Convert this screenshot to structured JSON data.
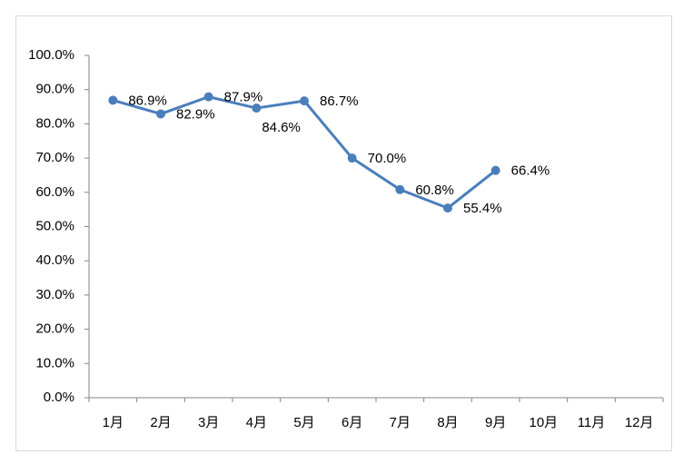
{
  "chart_data": {
    "type": "line",
    "categories": [
      "1月",
      "2月",
      "3月",
      "4月",
      "5月",
      "6月",
      "7月",
      "8月",
      "9月",
      "10月",
      "11月",
      "12月"
    ],
    "values": [
      86.9,
      82.9,
      87.9,
      84.6,
      86.7,
      70.0,
      60.8,
      55.4,
      66.4,
      null,
      null,
      null
    ],
    "value_labels": [
      "86.9%",
      "82.9%",
      "87.9%",
      "84.6%",
      "86.7%",
      "70.0%",
      "60.8%",
      "55.4%",
      "66.4%",
      null,
      null,
      null
    ],
    "color": "#4a7ebb",
    "ylim": [
      0,
      100
    ],
    "yticks": [
      {
        "value": 0,
        "label": "0.0%"
      },
      {
        "value": 10,
        "label": "10.0%"
      },
      {
        "value": 20,
        "label": "20.0%"
      },
      {
        "value": 30,
        "label": "30.0%"
      },
      {
        "value": 40,
        "label": "40.0%"
      },
      {
        "value": 50,
        "label": "50.0%"
      },
      {
        "value": 60,
        "label": "60.0%"
      },
      {
        "value": 70,
        "label": "70.0%"
      },
      {
        "value": 80,
        "label": "80.0%"
      },
      {
        "value": 90,
        "label": "90.0%"
      },
      {
        "value": 100,
        "label": "100.0%"
      }
    ],
    "grid": false
  }
}
